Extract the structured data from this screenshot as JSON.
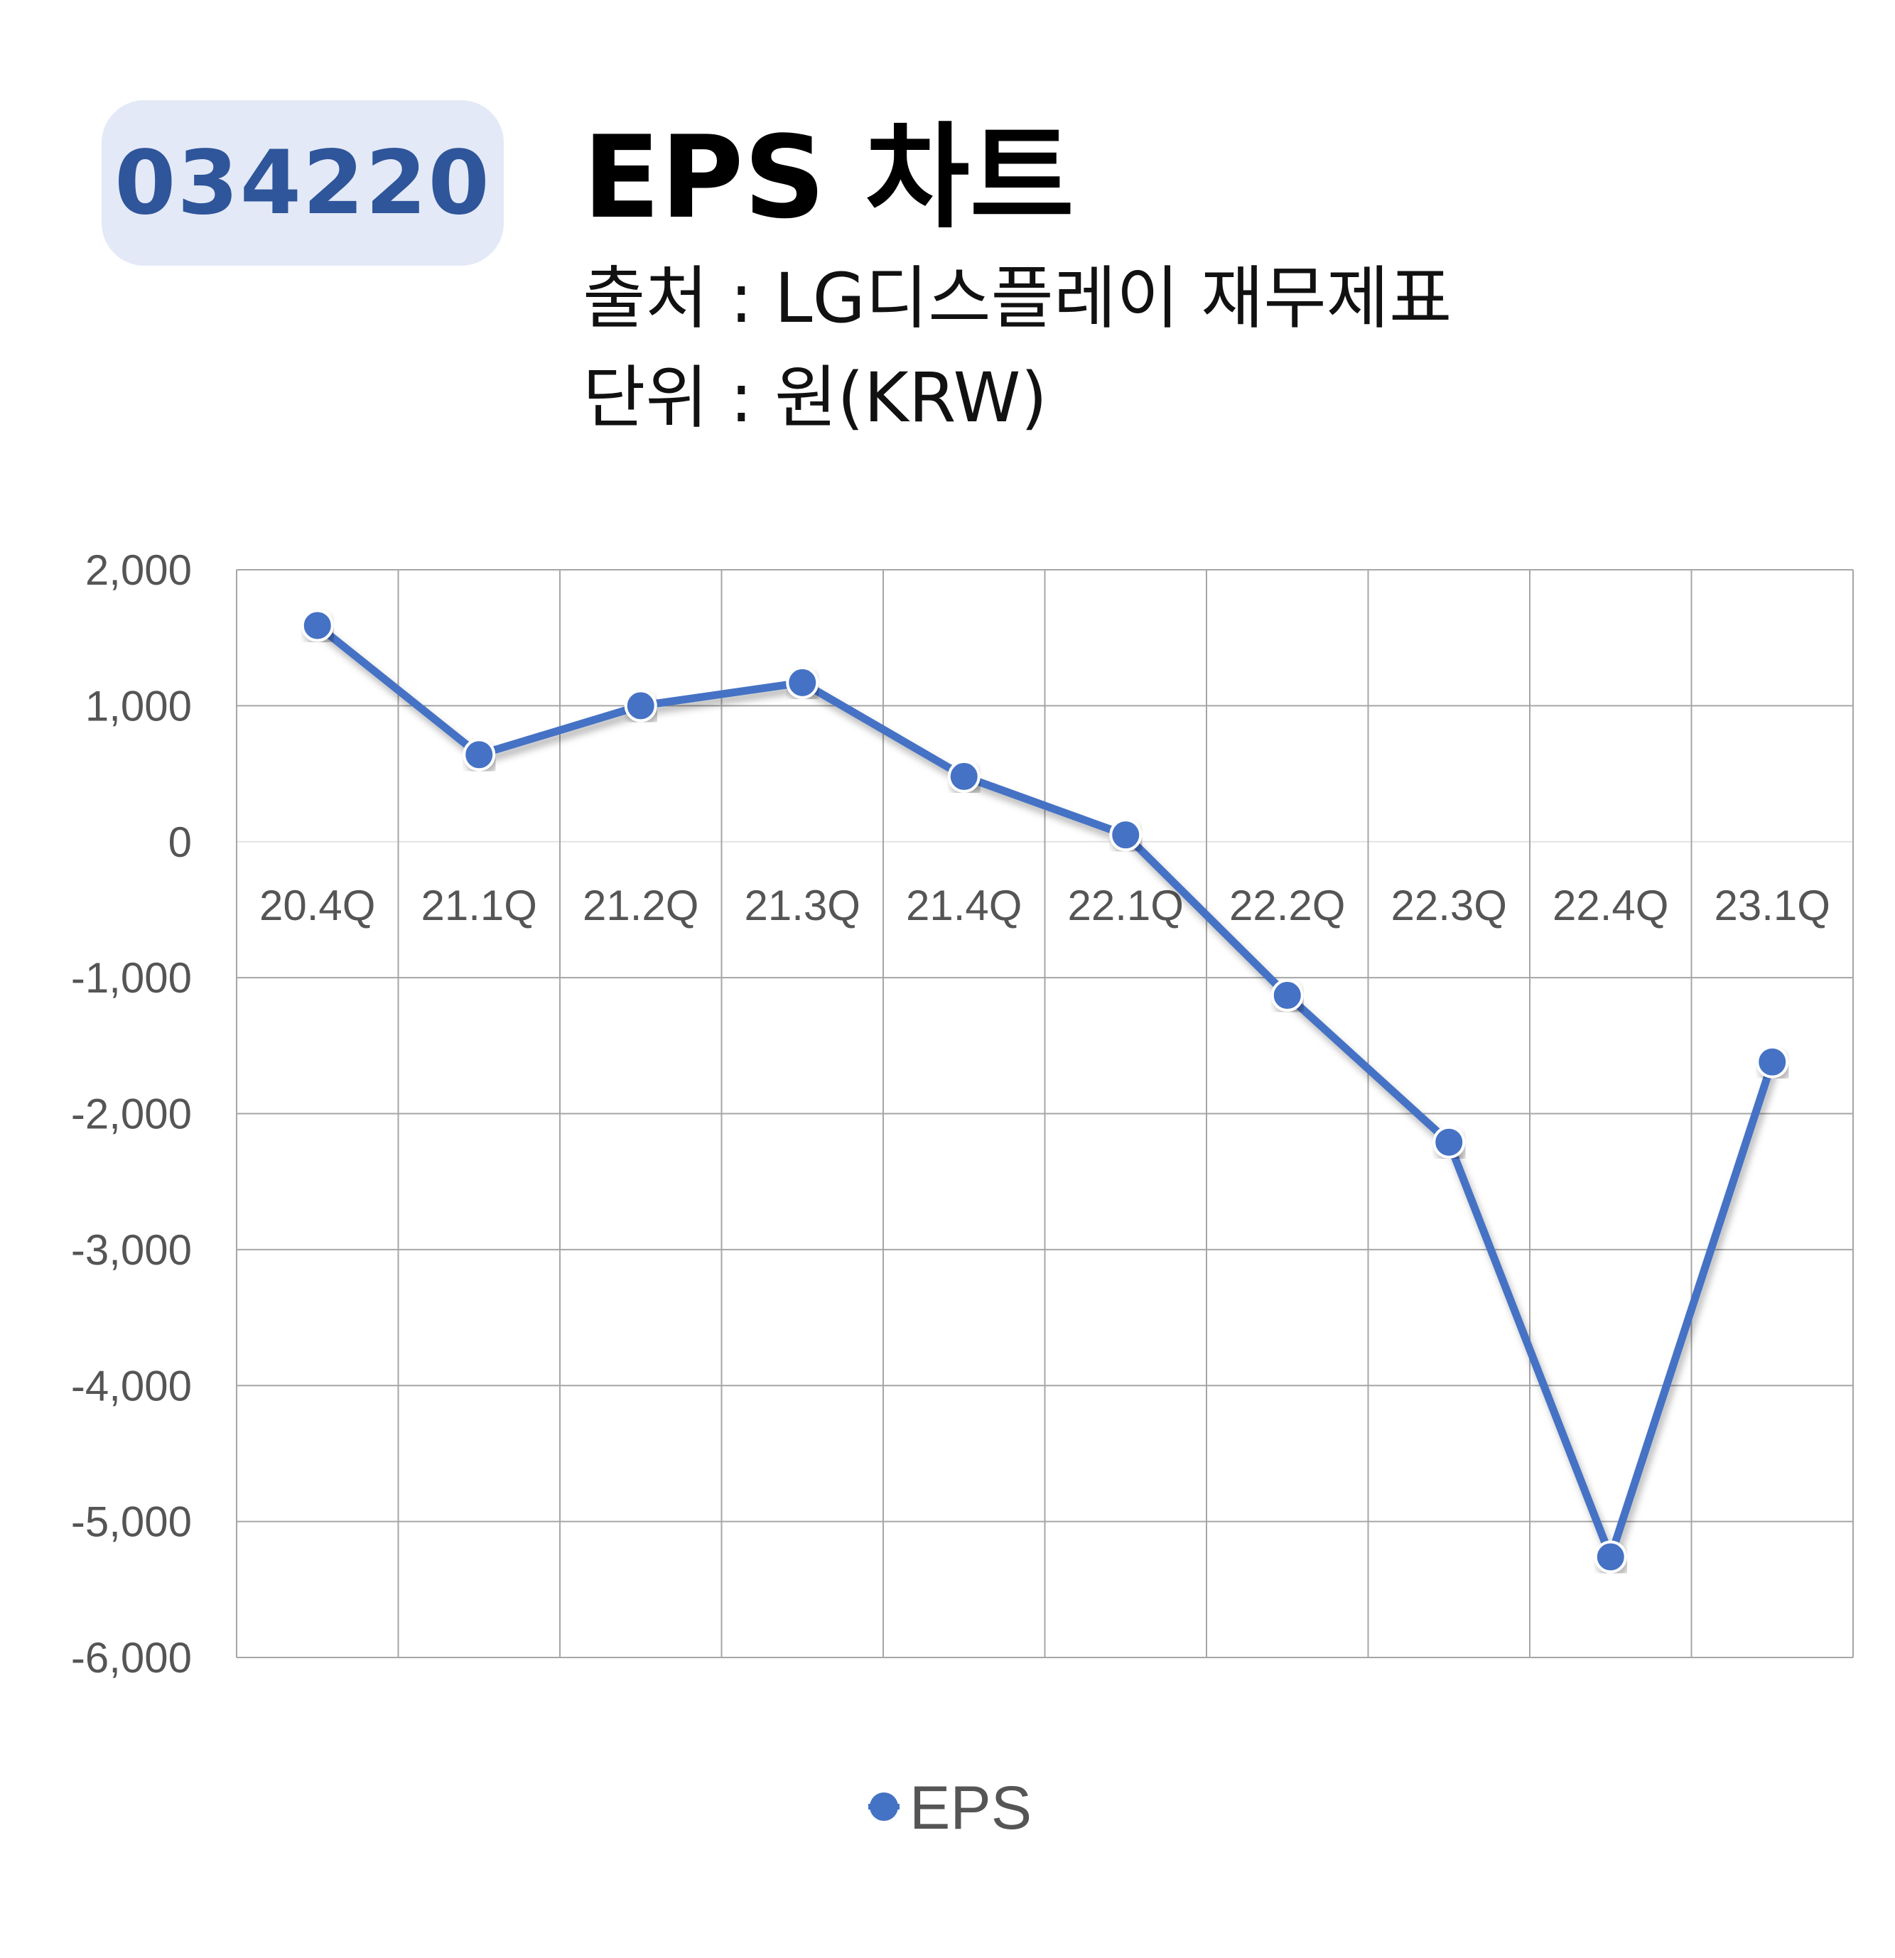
{
  "header": {
    "ticker": "034220",
    "title": "EPS 차트",
    "source": "출처 : LG디스플레이 재무제표",
    "unit": "단위 : 원(KRW)"
  },
  "colors": {
    "accent": "#4472c4",
    "badge_bg": "#e3e9f6",
    "badge_text": "#2f559a",
    "grid": "#a6a6a6"
  },
  "chart_data": {
    "type": "line",
    "categories": [
      "20.4Q",
      "21.1Q",
      "21.2Q",
      "21.3Q",
      "21.4Q",
      "22.1Q",
      "22.2Q",
      "22.3Q",
      "22.4Q",
      "23.1Q"
    ],
    "series": [
      {
        "name": "EPS",
        "values": [
          1590,
          640,
          1000,
          1170,
          480,
          50,
          -1130,
          -2210,
          -5260,
          -1620
        ]
      }
    ],
    "ylim": [
      -6000,
      2000
    ],
    "yticks": [
      2000,
      1000,
      0,
      -1000,
      -2000,
      -3000,
      -4000,
      -5000,
      -6000
    ],
    "ytick_labels": [
      "2,000",
      "1,000",
      "0",
      "-1,000",
      "-2,000",
      "-3,000",
      "-4,000",
      "-5,000",
      "-6,000"
    ],
    "grid": true,
    "legend": "bottom-center"
  }
}
